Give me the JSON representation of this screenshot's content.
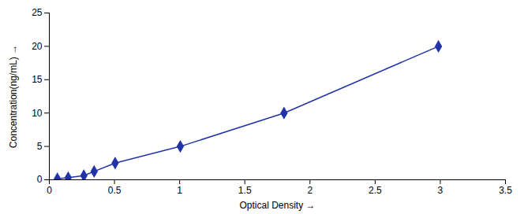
{
  "chart_data": {
    "type": "line",
    "x": [
      0.062,
      0.145,
      0.265,
      0.344,
      0.505,
      1.005,
      1.801,
      2.986
    ],
    "values": [
      0.156,
      0.312,
      0.625,
      1.25,
      2.5,
      5.0,
      10.0,
      20.0
    ],
    "color": "#2233AA",
    "marker": "diamond",
    "xlabel": "Optical Density",
    "ylabel": "Concentration(ng/mL)",
    "xlim": [
      0,
      3.5
    ],
    "ylim": [
      0,
      25
    ],
    "xticks": [
      0,
      0.5,
      1,
      1.5,
      2,
      2.5,
      3,
      3.5
    ],
    "yticks": [
      0,
      5,
      10,
      15,
      20,
      25
    ]
  }
}
